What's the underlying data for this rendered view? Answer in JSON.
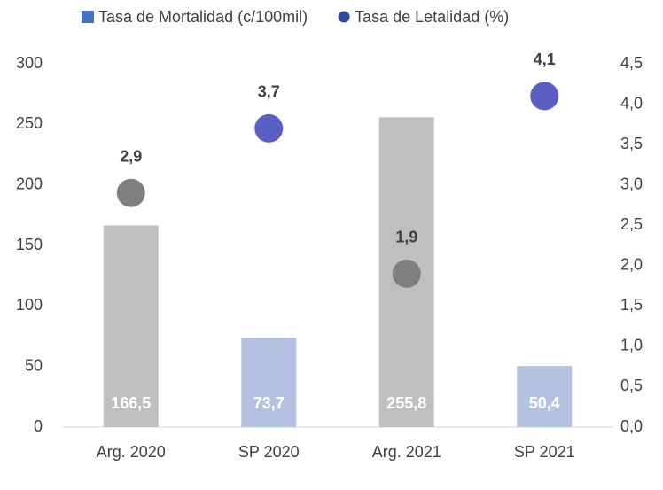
{
  "chart_data": {
    "type": "bar",
    "categories": [
      "Arg. 2020",
      "SP 2020",
      "Arg. 2021",
      "SP 2021"
    ],
    "series": [
      {
        "name": "Tasa de Mortalidad (c/100mil)",
        "type": "bar",
        "color": "#4472c4",
        "colors": [
          "#bfbfbf",
          "#b4c1e1",
          "#bfbfbf",
          "#b4c1e1"
        ],
        "values": [
          166.5,
          73.7,
          255.8,
          50.4
        ],
        "value_labels": [
          "166,5",
          "73,7",
          "255,8",
          "50,4"
        ]
      },
      {
        "name": "Tasa de Letalidad (%)",
        "type": "scatter",
        "axis": "y2",
        "color": "#2f4b9c",
        "colors": [
          "#7f7f7f",
          "#5b5fc4",
          "#7f7f7f",
          "#5b5fc4"
        ],
        "values": [
          2.9,
          3.7,
          1.9,
          4.1
        ],
        "value_labels": [
          "2,9",
          "3,7",
          "1,9",
          "4,1"
        ]
      }
    ],
    "ylim": [
      0,
      300
    ],
    "yticks": [
      0,
      50,
      100,
      150,
      200,
      250,
      300
    ],
    "y2lim": [
      0,
      4.5
    ],
    "y2ticks": [
      {
        "value": 0,
        "label": "0,0"
      },
      {
        "value": 0.5,
        "label": "0,5"
      },
      {
        "value": 1,
        "label": "1,0"
      },
      {
        "value": 1.5,
        "label": "1,5"
      },
      {
        "value": 2,
        "label": "2,0"
      },
      {
        "value": 2.5,
        "label": "2,5"
      },
      {
        "value": 3,
        "label": "3,0"
      },
      {
        "value": 3.5,
        "label": "3,5"
      },
      {
        "value": 4,
        "label": "4,0"
      },
      {
        "value": 4.5,
        "label": "4,5"
      }
    ],
    "legend": "top"
  }
}
